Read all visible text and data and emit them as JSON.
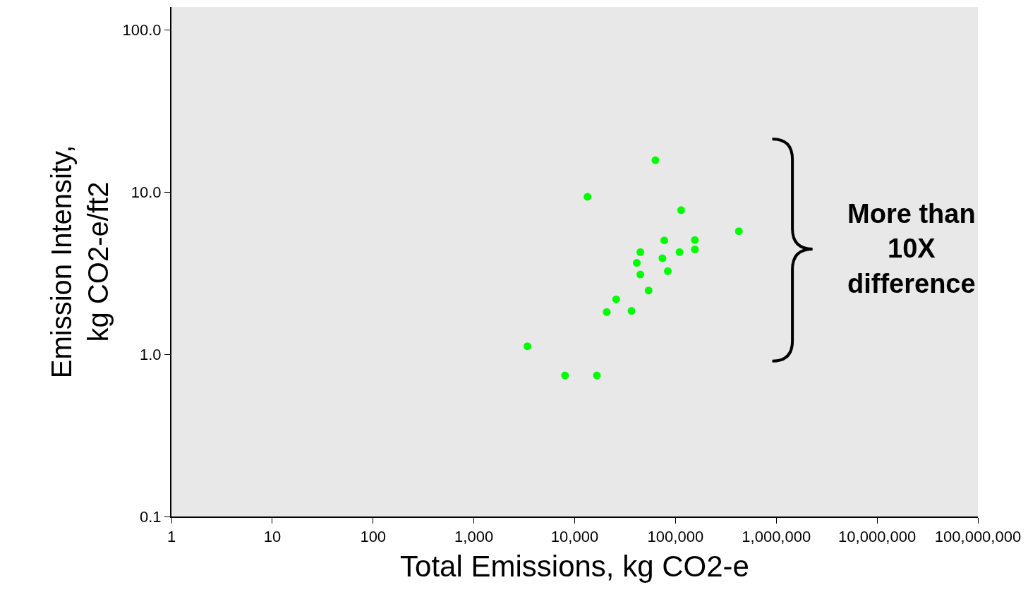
{
  "chart_data": {
    "type": "scatter",
    "xlabel": "Total Emissions, kg CO2-e",
    "ylabel": "Emission Intensity,\nkg CO2-e/ft2",
    "log": "xy",
    "grid": false,
    "marker": "circle",
    "xlim": [
      1,
      100000000
    ],
    "ylim": [
      0.1,
      138
    ],
    "xticks": [
      1,
      10,
      100,
      {
        "value": 1000,
        "label": "1,000"
      },
      {
        "value": 10000,
        "label": "10,000"
      },
      {
        "value": 100000,
        "label": "100,000"
      },
      {
        "value": 1000000,
        "label": "1,000,000"
      },
      {
        "value": 10000000,
        "label": "10,000,000"
      },
      {
        "value": 100000000,
        "label": "100,000,000"
      }
    ],
    "yticks": [
      {
        "value": 0.1,
        "label": "0.1"
      },
      {
        "value": 1,
        "label": "1.0"
      },
      {
        "value": 10,
        "label": "10.0"
      },
      {
        "value": 100,
        "label": "100.0"
      }
    ],
    "annotations": [
      "More than\n10X\ndifference"
    ],
    "series": [
      {
        "color": "#00ff00",
        "x": [
          63200,
          13400,
          113800,
          425000,
          77400,
          155600,
          155600,
          44800,
          109700,
          74200,
          41300,
          44800,
          83900,
          54100,
          25800,
          20800,
          36600,
          3400,
          8020,
          16600
        ],
        "values": [
          15.7,
          9.35,
          7.73,
          5.73,
          5.03,
          5.06,
          4.43,
          4.26,
          4.26,
          3.91,
          3.66,
          3.1,
          3.25,
          2.47,
          2.18,
          1.82,
          1.85,
          1.12,
          0.74,
          0.74
        ]
      }
    ]
  }
}
